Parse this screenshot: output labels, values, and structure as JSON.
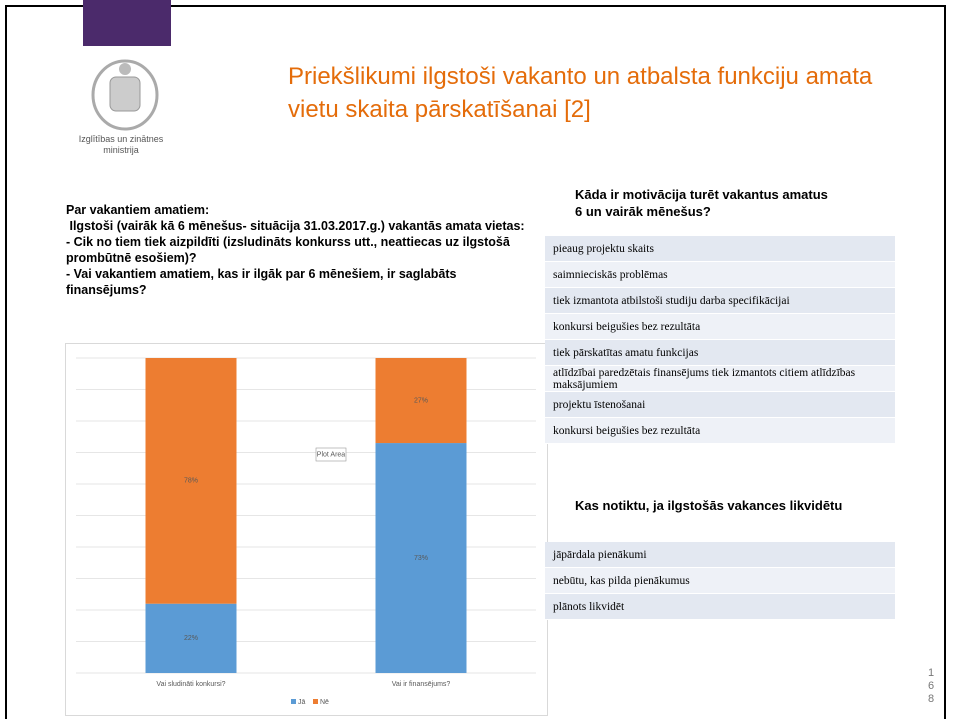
{
  "logo": {
    "caption": "Izglītības un zinātnes ministrija"
  },
  "title": "Priekšlikumi ilgstoši vakanto un  atbalsta funkciju amata vietu skaita pārskatīšanai [2]",
  "left_text": [
    "Par vakantiem amatiem:",
    " Ilgstoši (vairāk kā 6 mēnešus- situācija 31.03.2017.g.) vakantās amata vietas:",
    "- Cik no tiem tiek aizpildīti (izsludināts konkurss utt., neattiecas uz ilgstošā prombūtnē esošiem)?",
    "- Vai vakantiem amatiem, kas ir ilgāk par 6 mēnešiem, ir saglabāts finansējums?"
  ],
  "chart_data": {
    "type": "bar",
    "stacked": true,
    "categories": [
      "Vai sludināti konkursi?",
      "Vai ir finansējums?"
    ],
    "series": [
      {
        "name": "Jā",
        "color": "#5b9bd5",
        "values": [
          22,
          73
        ],
        "value_labels": [
          "22%",
          "73%"
        ]
      },
      {
        "name": "Nē",
        "color": "#ed7d31",
        "values": [
          78,
          27
        ],
        "value_labels": [
          "78%",
          "27%"
        ]
      }
    ],
    "ylim": [
      0,
      100
    ],
    "yticks": [
      0,
      10,
      20,
      30,
      40,
      50,
      60,
      70,
      80,
      90,
      100
    ],
    "grid": true,
    "annotation": "Plot Area"
  },
  "motivation": {
    "heading": "Kāda ir motivācija turēt vakantus amatus 6 un vairāk mēnešus?",
    "rows": [
      "pieaug projektu skaits",
      "saimnieciskās problēmas",
      "tiek izmantota atbilstoši studiju darba specifikācijai",
      "konkursi beigušies bez rezultāta",
      "tiek pārskatītas amatu funkcijas",
      "atlīdzībai paredzētais finansējums tiek izmantots citiem atlīdzības maksājumiem",
      "projektu īstenošanai",
      "konkursi beigušies bez rezultāta"
    ]
  },
  "liquidation": {
    "heading": "Kas notiktu, ja ilgstošās vakances likvidētu",
    "rows": [
      "jāpārdala pienākumi",
      "nebūtu, kas pilda pienākumus",
      "plānots likvidēt"
    ]
  },
  "page_number": "168"
}
